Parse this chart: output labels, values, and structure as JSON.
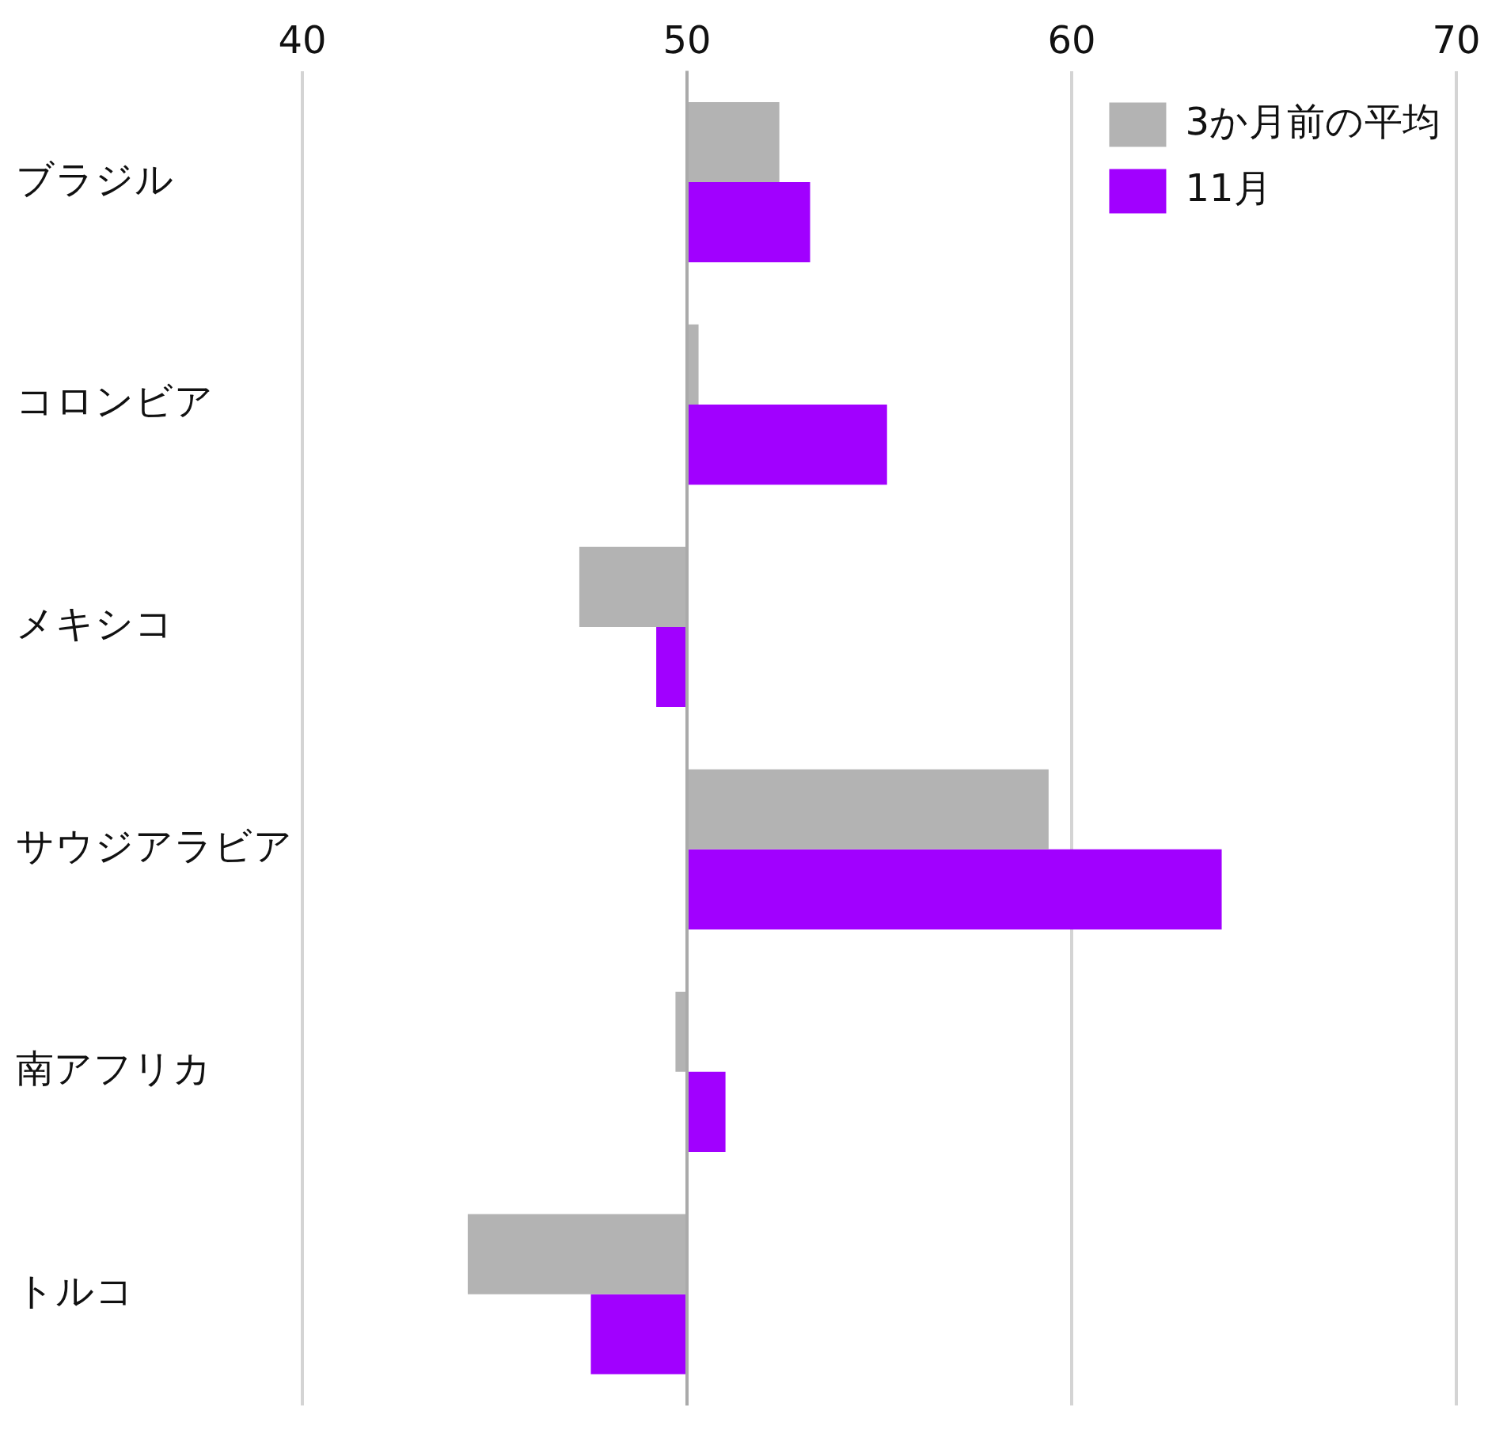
{
  "chart_data": {
    "type": "bar",
    "orientation": "horizontal",
    "categories": [
      "ブラジル",
      "コロンビア",
      "メキシコ",
      "サウジアラビア",
      "南アフリカ",
      "トルコ"
    ],
    "series": [
      {
        "name": "3か月前の平均",
        "color": "#b3b3b3",
        "base": [
          50,
          50,
          50,
          50,
          50,
          50
        ],
        "values": [
          2.4,
          0.3,
          -2.8,
          9.4,
          -0.3,
          -5.7
        ]
      },
      {
        "name": "11月",
        "color": "#a100ff",
        "base": [
          50,
          50,
          50,
          50,
          50,
          50
        ],
        "values": [
          3.2,
          5.2,
          -0.8,
          13.9,
          1.0,
          -2.5
        ]
      }
    ],
    "xlim": [
      40,
      70
    ],
    "xticks": [
      40,
      50,
      60,
      70
    ],
    "grid": "x",
    "legend": "top right",
    "ref_lines": [
      {
        "axis": "x",
        "value": 50,
        "color": "#aaaaaa"
      }
    ]
  }
}
